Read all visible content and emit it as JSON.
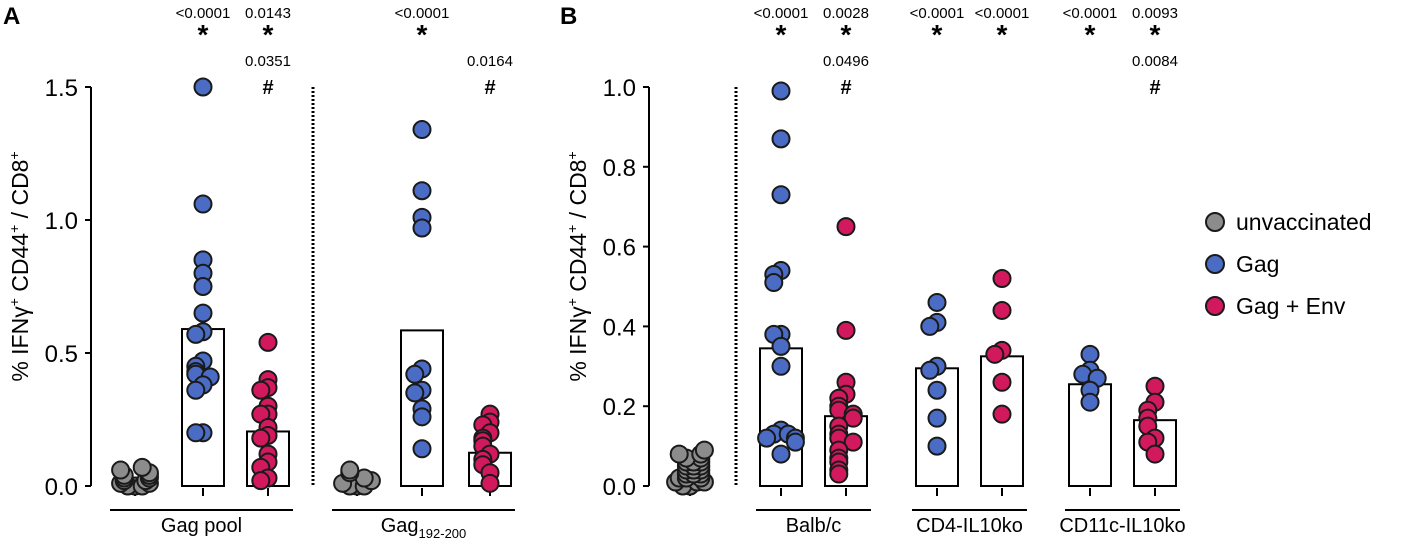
{
  "chart_data": [
    {
      "panel_label": "A",
      "type": "scatter",
      "ylabel": "% IFNγ⁺ CD44⁺ / CD8⁺",
      "ylabel_parts": [
        "% IFNγ",
        "+",
        " CD44",
        "+",
        " / CD8",
        "+"
      ],
      "ylim": [
        0,
        1.5
      ],
      "yticks": [
        {
          "v": 0,
          "label": "0.0"
        },
        {
          "v": 0.5,
          "label": "0.5"
        },
        {
          "v": 1.0,
          "label": "1.0"
        },
        {
          "v": 1.5,
          "label": "1.5"
        }
      ],
      "groups": [
        {
          "label": "Gag pool",
          "label_sub": "",
          "columns": [
            0,
            2
          ]
        },
        {
          "label": "Gag",
          "label_sub": "192-200",
          "columns": [
            3,
            5
          ]
        }
      ],
      "columns": [
        {
          "series": "unvaccinated",
          "bar": null,
          "values": [
            0.0,
            0.0,
            0.0,
            0.01,
            0.01,
            0.02,
            0.02,
            0.03,
            0.03,
            0.04,
            0.04,
            0.05,
            0.06,
            0.07
          ]
        },
        {
          "series": "Gag",
          "bar": 0.59,
          "values": [
            1.5,
            1.06,
            0.85,
            0.8,
            0.75,
            0.65,
            0.58,
            0.57,
            0.47,
            0.45,
            0.43,
            0.42,
            0.41,
            0.38,
            0.36,
            0.2,
            0.2
          ]
        },
        {
          "series": "Gag + Env",
          "bar": 0.205,
          "values": [
            0.54,
            0.4,
            0.37,
            0.36,
            0.3,
            0.27,
            0.27,
            0.22,
            0.19,
            0.18,
            0.12,
            0.09,
            0.07,
            0.03,
            0.02
          ]
        },
        {
          "series": "unvaccinated",
          "bar": null,
          "values": [
            0.0,
            0.0,
            0.0,
            0.01,
            0.02,
            0.03,
            0.05,
            0.06
          ]
        },
        {
          "series": "Gag",
          "bar": 0.585,
          "values": [
            1.34,
            1.11,
            1.01,
            0.97,
            0.44,
            0.42,
            0.36,
            0.35,
            0.29,
            0.26,
            0.14
          ]
        },
        {
          "series": "Gag + Env",
          "bar": 0.125,
          "values": [
            0.27,
            0.24,
            0.23,
            0.2,
            0.18,
            0.17,
            0.15,
            0.12,
            0.1,
            0.08,
            0.05,
            0.01
          ]
        }
      ],
      "annotations": [
        {
          "column": 1,
          "lines": [
            "<0.0001",
            "*"
          ]
        },
        {
          "column": 2,
          "lines": [
            "0.0143",
            "*",
            "0.0351",
            "#"
          ]
        },
        {
          "column": 4,
          "lines": [
            "<0.0001",
            "*"
          ]
        },
        {
          "column": 5,
          "lines": [
            "",
            "",
            "0.0164",
            "#"
          ]
        }
      ]
    },
    {
      "panel_label": "B",
      "type": "scatter",
      "ylabel": "% IFNγ⁺ CD44⁺ / CD8⁺",
      "ylabel_parts": [
        "% IFNγ",
        "+",
        " CD44",
        "+",
        " / CD8",
        "+"
      ],
      "ylim": [
        0,
        1.0
      ],
      "yticks": [
        {
          "v": 0,
          "label": "0.0"
        },
        {
          "v": 0.2,
          "label": "0.2"
        },
        {
          "v": 0.4,
          "label": "0.4"
        },
        {
          "v": 0.6,
          "label": "0.6"
        },
        {
          "v": 0.8,
          "label": "0.8"
        },
        {
          "v": 1.0,
          "label": "1.0"
        }
      ],
      "groups": [
        {
          "label": "Balb/c",
          "label_sub": "",
          "columns": [
            1,
            2
          ]
        },
        {
          "label": "CD4-IL10ko",
          "label_sub": "",
          "columns": [
            3,
            4
          ]
        },
        {
          "label": "CD11c-IL10ko",
          "label_sub": "",
          "columns": [
            5,
            6
          ]
        }
      ],
      "columns": [
        {
          "series": "unvaccinated",
          "bar": null,
          "values": [
            0.0,
            0.0,
            0.01,
            0.01,
            0.01,
            0.02,
            0.02,
            0.02,
            0.03,
            0.03,
            0.03,
            0.04,
            0.04,
            0.04,
            0.05,
            0.05,
            0.05,
            0.06,
            0.06,
            0.06,
            0.07,
            0.07,
            0.08,
            0.08,
            0.09
          ]
        },
        {
          "series": "Gag",
          "bar": 0.345,
          "values": [
            0.99,
            0.87,
            0.73,
            0.54,
            0.53,
            0.51,
            0.38,
            0.38,
            0.35,
            0.3,
            0.14,
            0.13,
            0.13,
            0.12,
            0.12,
            0.11,
            0.08
          ]
        },
        {
          "series": "Gag + Env",
          "bar": 0.175,
          "values": [
            0.65,
            0.39,
            0.26,
            0.23,
            0.22,
            0.2,
            0.19,
            0.18,
            0.17,
            0.15,
            0.13,
            0.12,
            0.11,
            0.09,
            0.07,
            0.06,
            0.04,
            0.03
          ]
        },
        {
          "series": "Gag",
          "bar": 0.295,
          "values": [
            0.46,
            0.41,
            0.4,
            0.3,
            0.29,
            0.24,
            0.17,
            0.1
          ]
        },
        {
          "series": "Gag + Env",
          "bar": 0.325,
          "values": [
            0.52,
            0.44,
            0.34,
            0.33,
            0.26,
            0.18
          ]
        },
        {
          "series": "Gag",
          "bar": 0.255,
          "values": [
            0.33,
            0.29,
            0.28,
            0.27,
            0.24,
            0.21
          ]
        },
        {
          "series": "Gag + Env",
          "bar": 0.165,
          "values": [
            0.25,
            0.21,
            0.19,
            0.17,
            0.15,
            0.12,
            0.11,
            0.08
          ]
        }
      ],
      "annotations": [
        {
          "column": 1,
          "lines": [
            "<0.0001",
            "*"
          ]
        },
        {
          "column": 2,
          "lines": [
            "0.0028",
            "*",
            "0.0496",
            "#"
          ]
        },
        {
          "column": 3,
          "lines": [
            "<0.0001",
            "*"
          ]
        },
        {
          "column": 4,
          "lines": [
            "<0.0001",
            "*"
          ]
        },
        {
          "column": 5,
          "lines": [
            "<0.0001",
            "*"
          ]
        },
        {
          "column": 6,
          "lines": [
            "0.0093",
            "*",
            "0.0084",
            "#"
          ]
        }
      ]
    }
  ],
  "legend": {
    "placement": "right",
    "entries": [
      {
        "label": "unvaccinated",
        "color": "#8c8c8c"
      },
      {
        "label": "Gag",
        "color": "#4a6cc4"
      },
      {
        "label": "Gag + Env",
        "color": "#d2195e"
      }
    ]
  },
  "colors": {
    "unvaccinated": "#8c8c8c",
    "Gag": "#4a6cc4",
    "Gag + Env": "#d2195e"
  }
}
